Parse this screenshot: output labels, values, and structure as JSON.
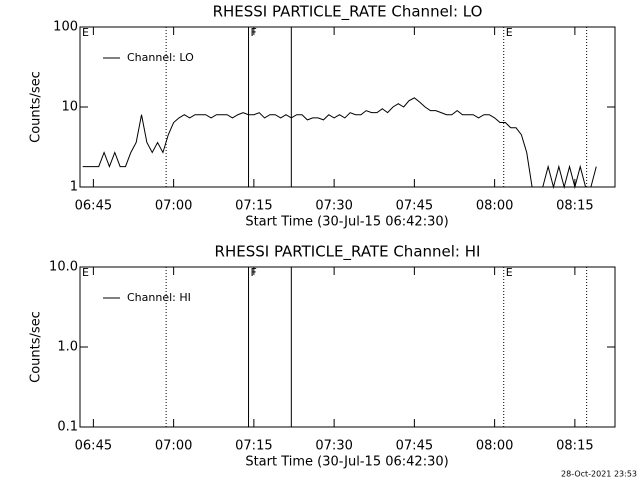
{
  "chart_data": [
    {
      "type": "line",
      "title": "RHESSI PARTICLE_RATE Channel: LO",
      "xlabel": "Start Time (30-Jul-15 06:42:30)",
      "ylabel": "Counts/sec",
      "x": [
        403,
        404,
        405,
        406,
        407,
        408,
        409,
        410,
        411,
        412,
        413,
        414,
        415,
        416,
        417,
        418,
        419,
        420,
        421,
        422,
        423,
        424,
        425,
        426,
        427,
        428,
        429,
        430,
        431,
        432,
        433,
        434,
        435,
        436,
        437,
        438,
        439,
        440,
        441,
        442,
        443,
        444,
        445,
        446,
        447,
        448,
        449,
        450,
        451,
        452,
        453,
        454,
        455,
        456,
        457,
        458,
        459,
        460,
        461,
        462,
        463,
        464,
        465,
        466,
        467,
        468,
        469,
        470,
        471,
        472,
        473,
        474,
        475,
        476,
        477,
        478,
        479,
        480,
        481,
        482,
        483,
        484,
        485,
        486,
        487,
        488,
        489,
        490,
        491,
        492,
        493,
        494,
        495,
        496,
        497,
        498,
        499
      ],
      "series": [
        {
          "name": "Channel: LO",
          "color": "#000000",
          "values": [
            1.8,
            1.8,
            1.8,
            1.8,
            2.7,
            1.8,
            2.7,
            1.8,
            1.8,
            2.7,
            3.6,
            8,
            3.6,
            2.7,
            3.6,
            2.7,
            4.5,
            6.4,
            7.3,
            8,
            7.3,
            8,
            8,
            8,
            7.3,
            8,
            8,
            8,
            7.3,
            8,
            8.5,
            8,
            8,
            8.5,
            7.3,
            8,
            8,
            7.3,
            8,
            7.3,
            8,
            8,
            6.9,
            7.3,
            7.3,
            6.9,
            8,
            7.3,
            8,
            7.3,
            8.5,
            8,
            8,
            9,
            8.5,
            8.5,
            9.5,
            8.5,
            10,
            11,
            10,
            12,
            13,
            11.5,
            10,
            9,
            9,
            8.5,
            8,
            8,
            9,
            8,
            8,
            8,
            7.3,
            8,
            8,
            7.3,
            6.4,
            6.4,
            5.5,
            5.5,
            4.5,
            2.7,
            1,
            1,
            1,
            1.8,
            1,
            1.8,
            1,
            1.8,
            1,
            1.8,
            1,
            1,
            1.8
          ]
        }
      ],
      "xlim": [
        402.5,
        502.5
      ],
      "xticks": [
        {
          "value": 405,
          "label": "06:45"
        },
        {
          "value": 420,
          "label": "07:00"
        },
        {
          "value": 435,
          "label": "07:15"
        },
        {
          "value": 450,
          "label": "07:30"
        },
        {
          "value": 465,
          "label": "07:45"
        },
        {
          "value": 480,
          "label": "08:00"
        },
        {
          "value": 495,
          "label": "08:15"
        }
      ],
      "ylim": [
        1,
        100
      ],
      "yticks": [
        1,
        10,
        100
      ],
      "ylog": true,
      "legend": "upper left",
      "vlines": [
        {
          "x": 418.6,
          "style": "dotted"
        },
        {
          "x": 434.0,
          "style": "solid"
        },
        {
          "x": 442.0,
          "style": "solid"
        },
        {
          "x": 481.7,
          "style": "dotted"
        },
        {
          "x": 497.2,
          "style": "dotted"
        }
      ],
      "markers": [
        {
          "x": 402.5,
          "label": "E"
        },
        {
          "x": 434.0,
          "label": "F"
        },
        {
          "x": 481.7,
          "label": "E"
        }
      ]
    },
    {
      "type": "line",
      "title": "RHESSI PARTICLE_RATE Channel: HI",
      "xlabel": "Start Time (30-Jul-15 06:42:30)",
      "ylabel": "Counts/sec",
      "x": [],
      "series": [
        {
          "name": "Channel: HI",
          "color": "#000000",
          "values": []
        }
      ],
      "xlim": [
        402.5,
        502.5
      ],
      "xticks": [
        {
          "value": 405,
          "label": "06:45"
        },
        {
          "value": 420,
          "label": "07:00"
        },
        {
          "value": 435,
          "label": "07:15"
        },
        {
          "value": 450,
          "label": "07:30"
        },
        {
          "value": 465,
          "label": "07:45"
        },
        {
          "value": 480,
          "label": "08:00"
        },
        {
          "value": 495,
          "label": "08:15"
        }
      ],
      "ylim": [
        0.1,
        10
      ],
      "yticks": [
        0.1,
        {
          "value": 1,
          "label": "1.0"
        },
        {
          "value": 10,
          "label": "10.0"
        }
      ],
      "ylog": true,
      "legend": "upper left",
      "vlines": [
        {
          "x": 418.6,
          "style": "dotted"
        },
        {
          "x": 434.0,
          "style": "solid"
        },
        {
          "x": 442.0,
          "style": "solid"
        },
        {
          "x": 481.7,
          "style": "dotted"
        },
        {
          "x": 497.2,
          "style": "dotted"
        }
      ],
      "markers": [
        {
          "x": 402.5,
          "label": "E"
        },
        {
          "x": 434.0,
          "label": "F"
        },
        {
          "x": 481.7,
          "label": "E"
        }
      ]
    }
  ],
  "footer": "28-Oct-2021 23:53"
}
